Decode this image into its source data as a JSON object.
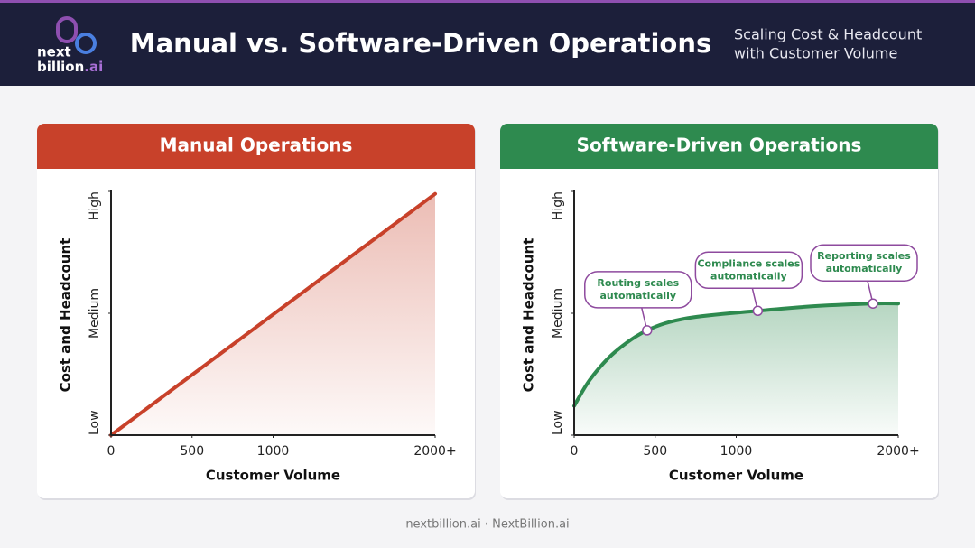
{
  "header": {
    "logo": [
      "next",
      "billion",
      ".ai"
    ],
    "title": "Manual vs. Software-Driven Operations",
    "subtitle": [
      "Scaling Cost & Headcount",
      "with Customer Volume"
    ]
  },
  "chart_data": [
    {
      "type": "area",
      "title": "Manual Operations",
      "color": "#c8412a",
      "xlabel": "Customer Volume",
      "ylabel": "Cost and Headcount",
      "x": [
        0,
        2000
      ],
      "values": [
        0,
        99
      ],
      "xlim": [
        0,
        2000
      ],
      "ylim": [
        0,
        100
      ],
      "xticks": [
        0,
        500,
        1000,
        {
          "value": 2000,
          "label": "2000+"
        }
      ],
      "yticks": [
        {
          "value": 0,
          "label": "Low"
        },
        {
          "value": 50,
          "label": "Medium"
        },
        {
          "value": 100,
          "label": "High"
        }
      ]
    },
    {
      "type": "area",
      "title": "Software-Driven Operations",
      "color": "#2e8a4f",
      "xlabel": "Customer Volume",
      "ylabel": "Cost and Headcount",
      "x": [
        0,
        100,
        250,
        450,
        700,
        1133,
        1500,
        1844,
        2000
      ],
      "values": [
        12,
        23,
        34,
        43,
        48,
        51,
        53,
        54,
        54
      ],
      "xlim": [
        0,
        2000
      ],
      "ylim": [
        0,
        100
      ],
      "xticks": [
        0,
        500,
        1000,
        {
          "value": 2000,
          "label": "2000+"
        }
      ],
      "yticks": [
        {
          "value": 0,
          "label": "Low"
        },
        {
          "value": 50,
          "label": "Medium"
        },
        {
          "value": 100,
          "label": "High"
        }
      ],
      "annotations": [
        {
          "x": 450,
          "y": 43,
          "text": [
            "Routing scales",
            "automatically"
          ]
        },
        {
          "x": 1133,
          "y": 51,
          "text": [
            "Compliance scales",
            "automatically"
          ]
        },
        {
          "x": 1844,
          "y": 54,
          "text": [
            "Reporting scales",
            "automatically"
          ]
        }
      ]
    }
  ],
  "footer": "nextbillion.ai · NextBillion.ai"
}
